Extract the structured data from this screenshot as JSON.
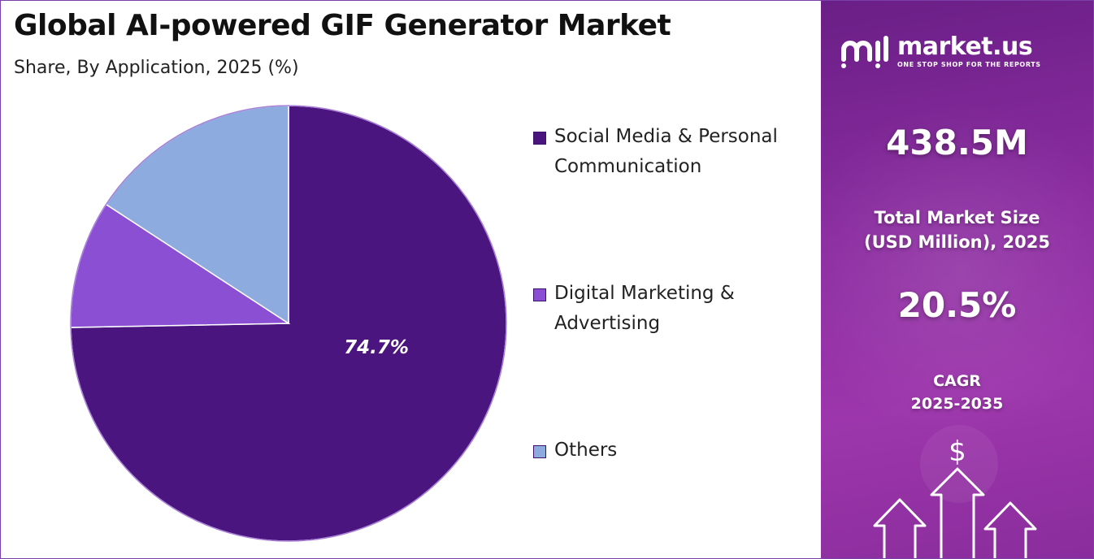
{
  "title": "Global AI-powered GIF Generator Market",
  "subtitle": "Share, By Application, 2025 (%)",
  "chart_data": {
    "type": "pie",
    "title": "Global AI-powered GIF Generator Market",
    "subtitle": "Share, By Application, 2025 (%)",
    "categories": [
      "Social Media & Personal Communication",
      "Digital Marketing & Advertising",
      "Others"
    ],
    "values": [
      74.7,
      9.5,
      15.8
    ],
    "labeled_values": [
      "74.7%"
    ],
    "colors": [
      "#4b1580",
      "#8b4fd3",
      "#8eabdf"
    ],
    "legend_position": "right"
  },
  "legend": {
    "items": [
      {
        "label": "Social Media & Personal Communication",
        "color": "#4b1580"
      },
      {
        "label": "Digital Marketing & Advertising",
        "color": "#8b4fd3"
      },
      {
        "label": "Others",
        "color": "#8eabdf"
      }
    ]
  },
  "sidebar": {
    "logo_name": "market.us",
    "logo_tagline": "ONE STOP SHOP FOR THE REPORTS",
    "market_size_value": "438.5M",
    "market_size_label_1": "Total Market Size",
    "market_size_label_2": "(USD Million), 2025",
    "cagr_value": "20.5%",
    "cagr_label_1": "CAGR",
    "cagr_label_2": "2025-2035",
    "currency_symbol": "$",
    "background_color": "#8b2ca0"
  }
}
